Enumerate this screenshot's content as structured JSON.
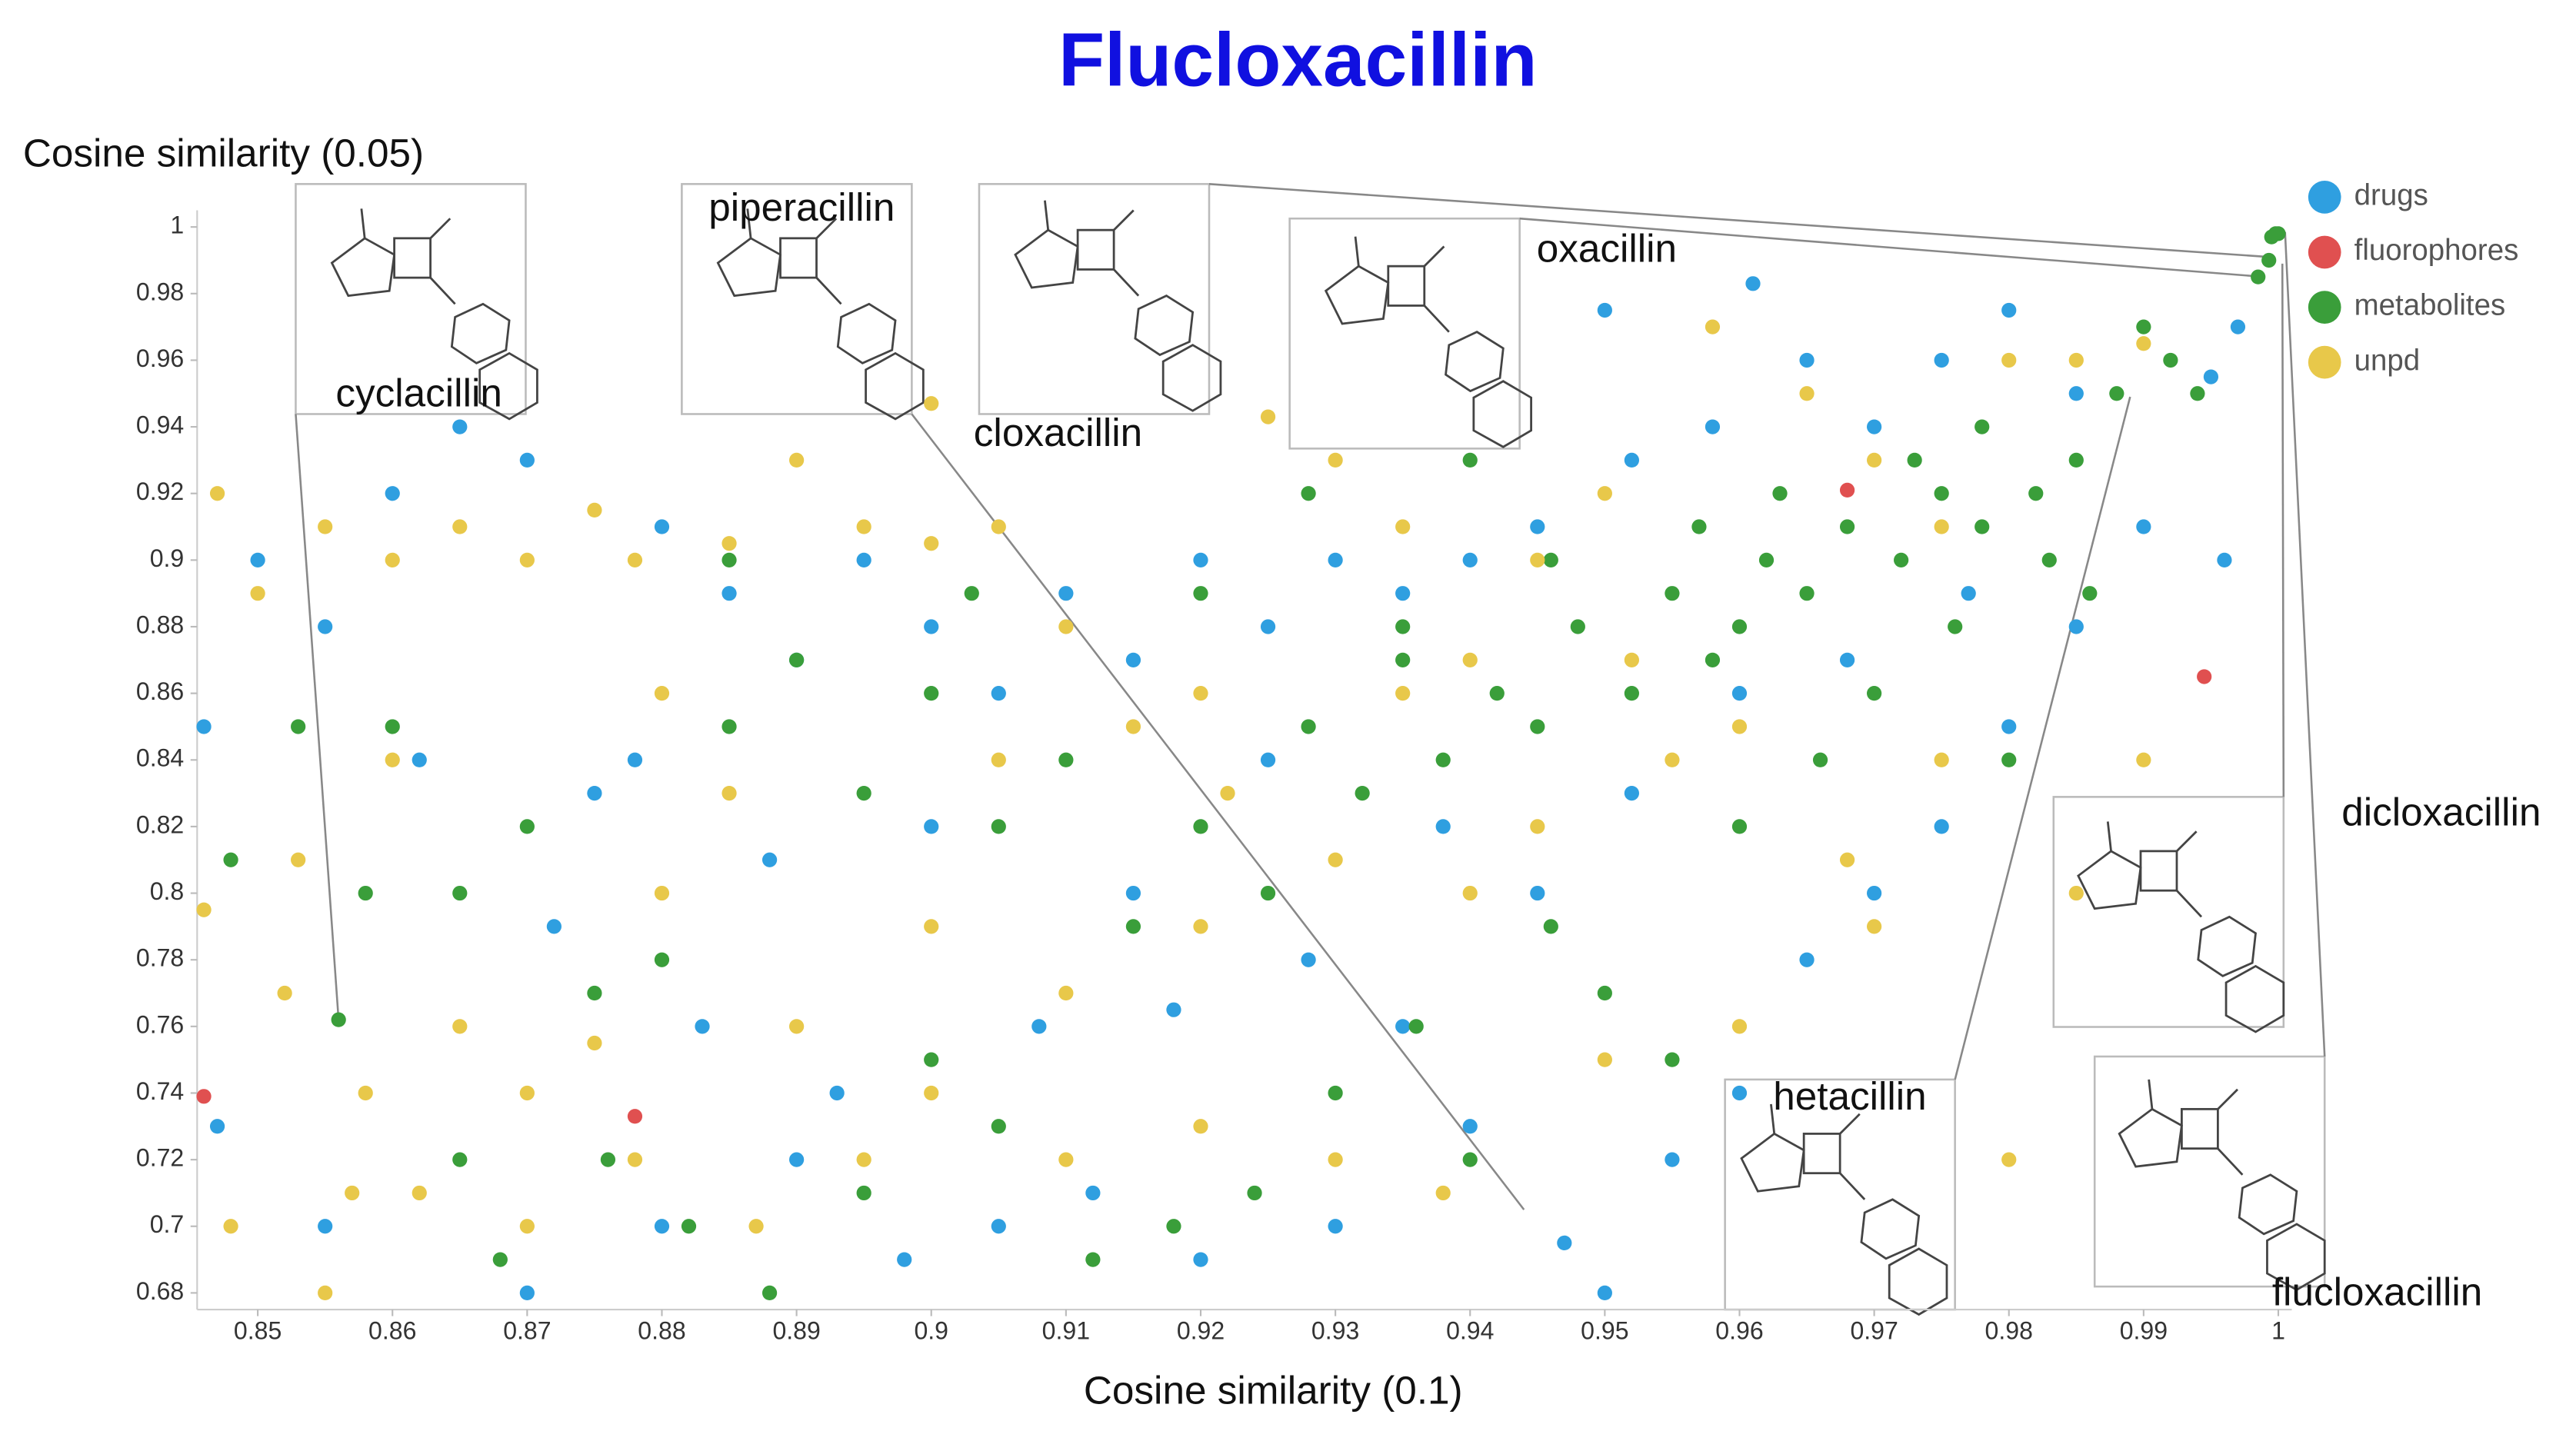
{
  "chart_data": {
    "type": "scatter",
    "title": "Flucloxacillin",
    "x_label": "Cosine similarity (0.1)",
    "y_label": "Cosine similarity (0.05)",
    "xlim": [
      0.8455,
      1.001
    ],
    "ylim": [
      0.675,
      1.005
    ],
    "xticks": [
      0.85,
      0.86,
      0.87,
      0.88,
      0.89,
      0.9,
      0.91,
      0.92,
      0.93,
      0.94,
      0.95,
      0.96,
      0.97,
      0.98,
      0.99,
      1
    ],
    "yticks": [
      0.68,
      0.7,
      0.72,
      0.74,
      0.76,
      0.78,
      0.8,
      0.82,
      0.84,
      0.86,
      0.88,
      0.9,
      0.92,
      0.94,
      0.96,
      0.98,
      1
    ],
    "legend": "top-right",
    "series": [
      {
        "name": "drugs",
        "color": "#2f9fe0",
        "x": [
          0.961,
          0.95,
          0.997,
          0.98,
          0.995,
          0.985,
          0.975,
          0.97,
          0.965,
          0.958,
          0.952,
          0.945,
          0.94,
          0.935,
          0.93,
          0.925,
          0.92,
          0.915,
          0.91,
          0.905,
          0.9,
          0.895,
          0.89,
          0.885,
          0.88,
          0.875,
          0.87,
          0.865,
          0.86,
          0.855,
          0.85,
          0.846,
          0.847,
          0.855,
          0.87,
          0.88,
          0.89,
          0.898,
          0.905,
          0.912,
          0.92,
          0.93,
          0.94,
          0.947,
          0.95,
          0.955,
          0.96,
          0.965,
          0.97,
          0.975,
          0.98,
          0.985,
          0.99,
          0.996,
          0.952,
          0.945,
          0.938,
          0.925,
          0.915,
          0.9,
          0.888,
          0.878,
          0.862,
          0.872,
          0.883,
          0.893,
          0.908,
          0.918,
          0.928,
          0.935,
          0.96,
          0.968,
          0.977
        ],
        "y": [
          0.983,
          0.975,
          0.97,
          0.975,
          0.955,
          0.95,
          0.96,
          0.94,
          0.96,
          0.94,
          0.93,
          0.91,
          0.9,
          0.89,
          0.9,
          0.88,
          0.9,
          0.87,
          0.89,
          0.86,
          0.88,
          0.9,
          0.87,
          0.89,
          0.91,
          0.83,
          0.93,
          0.94,
          0.92,
          0.88,
          0.9,
          0.85,
          0.73,
          0.7,
          0.68,
          0.7,
          0.72,
          0.69,
          0.7,
          0.71,
          0.69,
          0.7,
          0.73,
          0.695,
          0.68,
          0.72,
          0.74,
          0.78,
          0.8,
          0.82,
          0.85,
          0.88,
          0.91,
          0.9,
          0.83,
          0.8,
          0.82,
          0.84,
          0.8,
          0.82,
          0.81,
          0.84,
          0.84,
          0.79,
          0.76,
          0.74,
          0.76,
          0.765,
          0.78,
          0.76,
          0.86,
          0.87,
          0.89
        ]
      },
      {
        "name": "fluorophores",
        "color": "#e05050",
        "x": [
          0.968,
          0.9945,
          0.878,
          0.846
        ],
        "y": [
          0.921,
          0.865,
          0.733,
          0.739
        ]
      },
      {
        "name": "metabolites",
        "color": "#3a9e3a",
        "x": [
          0.9995,
          0.9998,
          1.0,
          0.9993,
          0.9985,
          0.856,
          0.99,
          0.988,
          0.985,
          0.982,
          0.978,
          0.975,
          0.972,
          0.968,
          0.965,
          0.962,
          0.96,
          0.958,
          0.955,
          0.952,
          0.948,
          0.945,
          0.942,
          0.938,
          0.935,
          0.932,
          0.928,
          0.925,
          0.92,
          0.915,
          0.91,
          0.905,
          0.9,
          0.895,
          0.89,
          0.885,
          0.88,
          0.875,
          0.87,
          0.865,
          0.86,
          0.853,
          0.848,
          0.865,
          0.868,
          0.882,
          0.888,
          0.895,
          0.9,
          0.905,
          0.912,
          0.918,
          0.924,
          0.93,
          0.936,
          0.94,
          0.946,
          0.95,
          0.955,
          0.96,
          0.966,
          0.97,
          0.976,
          0.98,
          0.983,
          0.986,
          0.992,
          0.994,
          0.978,
          0.973,
          0.963,
          0.957,
          0.946,
          0.94,
          0.935,
          0.928,
          0.92,
          0.903,
          0.885,
          0.876,
          0.858
        ],
        "y": [
          0.997,
          0.998,
          0.998,
          0.99,
          0.985,
          0.762,
          0.97,
          0.95,
          0.93,
          0.92,
          0.91,
          0.92,
          0.9,
          0.91,
          0.89,
          0.9,
          0.88,
          0.87,
          0.89,
          0.86,
          0.88,
          0.85,
          0.86,
          0.84,
          0.87,
          0.83,
          0.85,
          0.8,
          0.82,
          0.79,
          0.84,
          0.82,
          0.86,
          0.83,
          0.87,
          0.85,
          0.78,
          0.77,
          0.82,
          0.8,
          0.85,
          0.85,
          0.81,
          0.72,
          0.69,
          0.7,
          0.68,
          0.71,
          0.75,
          0.73,
          0.69,
          0.7,
          0.71,
          0.74,
          0.76,
          0.72,
          0.79,
          0.77,
          0.75,
          0.82,
          0.84,
          0.86,
          0.88,
          0.84,
          0.9,
          0.89,
          0.96,
          0.95,
          0.94,
          0.93,
          0.92,
          0.91,
          0.9,
          0.93,
          0.88,
          0.92,
          0.89,
          0.89,
          0.9,
          0.72,
          0.8
        ]
      },
      {
        "name": "unpd",
        "color": "#e8c84a",
        "x": [
          0.847,
          0.85,
          0.855,
          0.86,
          0.865,
          0.87,
          0.875,
          0.878,
          0.885,
          0.89,
          0.895,
          0.9,
          0.905,
          0.9,
          0.91,
          0.915,
          0.92,
          0.925,
          0.93,
          0.935,
          0.94,
          0.945,
          0.95,
          0.958,
          0.965,
          0.97,
          0.975,
          0.98,
          0.985,
          0.99,
          0.96,
          0.955,
          0.945,
          0.94,
          0.93,
          0.92,
          0.91,
          0.9,
          0.89,
          0.88,
          0.875,
          0.87,
          0.865,
          0.858,
          0.852,
          0.846,
          0.848,
          0.855,
          0.862,
          0.87,
          0.878,
          0.887,
          0.895,
          0.9,
          0.91,
          0.92,
          0.93,
          0.938,
          0.95,
          0.96,
          0.97,
          0.98,
          0.985,
          0.99,
          0.975,
          0.968,
          0.952,
          0.935,
          0.922,
          0.905,
          0.885,
          0.88,
          0.86,
          0.853,
          0.857
        ],
        "y": [
          0.92,
          0.89,
          0.91,
          0.9,
          0.91,
          0.9,
          0.915,
          0.9,
          0.905,
          0.93,
          0.91,
          0.905,
          0.91,
          0.947,
          0.88,
          0.85,
          0.86,
          0.943,
          0.93,
          0.91,
          0.87,
          0.9,
          0.92,
          0.97,
          0.95,
          0.93,
          0.91,
          0.96,
          0.96,
          0.965,
          0.85,
          0.84,
          0.82,
          0.8,
          0.81,
          0.79,
          0.77,
          0.79,
          0.76,
          0.8,
          0.755,
          0.74,
          0.76,
          0.74,
          0.77,
          0.795,
          0.7,
          0.68,
          0.71,
          0.7,
          0.72,
          0.7,
          0.72,
          0.74,
          0.72,
          0.73,
          0.72,
          0.71,
          0.75,
          0.76,
          0.79,
          0.72,
          0.8,
          0.84,
          0.84,
          0.81,
          0.87,
          0.86,
          0.83,
          0.84,
          0.83,
          0.86,
          0.84,
          0.81,
          0.71
        ]
      }
    ],
    "annotations": [
      {
        "text": "cyclacillin",
        "x": 0.856,
        "y": 0.762
      },
      {
        "text": "piperacillin",
        "x": 0.944,
        "y": 0.705
      },
      {
        "text": "cloxacillin",
        "x": 0.9993,
        "y": 0.991
      },
      {
        "text": "oxacillin",
        "x": 0.999,
        "y": 0.985
      },
      {
        "text": "hetacillin",
        "x": 0.989,
        "y": 0.949
      },
      {
        "text": "dicloxacillin",
        "x": 1.0003,
        "y": 0.989
      },
      {
        "text": "flucloxacillin",
        "x": 1.0005,
        "y": 0.9985
      }
    ]
  }
}
